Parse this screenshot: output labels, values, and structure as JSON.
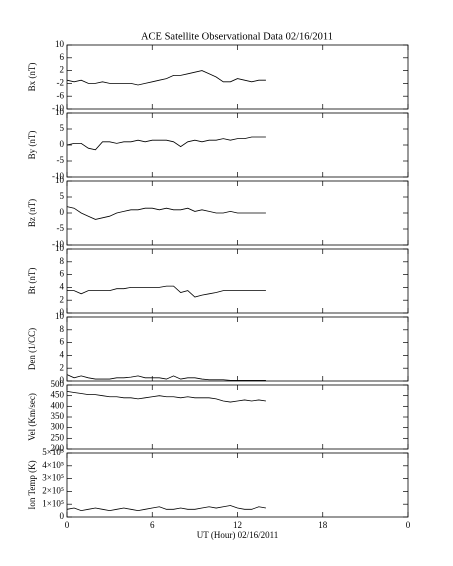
{
  "chart_data": [
    {
      "type": "line",
      "title": "ACE Satellite Observational Data   02/16/2011",
      "ylabel": "Bx (nT)",
      "color": "#000000",
      "xlim": [
        0,
        24
      ],
      "ylim": [
        -10,
        10
      ],
      "yticks": [
        -10,
        -6,
        -2,
        2,
        6,
        10
      ],
      "x": [
        0,
        0.5,
        1,
        1.5,
        2,
        2.5,
        3,
        3.5,
        4,
        4.5,
        5,
        5.5,
        6,
        6.5,
        7,
        7.5,
        8,
        8.5,
        9,
        9.5,
        10,
        10.5,
        11,
        11.5,
        12,
        12.5,
        13,
        13.5,
        14
      ],
      "values": [
        -1,
        -1.5,
        -1,
        -2,
        -2,
        -1.5,
        -2,
        -2,
        -2,
        -2,
        -2.5,
        -2,
        -1.5,
        -1,
        -0.5,
        0.5,
        0.5,
        1,
        1.5,
        2,
        1,
        0,
        -1.5,
        -1.5,
        -0.5,
        -1,
        -1.5,
        -1,
        -1
      ]
    },
    {
      "type": "line",
      "ylabel": "By (nT)",
      "color": "#000000",
      "xlim": [
        0,
        24
      ],
      "ylim": [
        -10,
        10
      ],
      "yticks": [
        -10,
        -5,
        0,
        5,
        10
      ],
      "x": [
        0,
        0.5,
        1,
        1.5,
        2,
        2.5,
        3,
        3.5,
        4,
        4.5,
        5,
        5.5,
        6,
        6.5,
        7,
        7.5,
        8,
        8.5,
        9,
        9.5,
        10,
        10.5,
        11,
        11.5,
        12,
        12.5,
        13,
        13.5,
        14
      ],
      "values": [
        0,
        0.5,
        0.5,
        -1,
        -1.5,
        1,
        1,
        0.5,
        1,
        1,
        1.5,
        1,
        1.5,
        1.5,
        1.5,
        1,
        -0.5,
        1,
        1.5,
        1,
        1.5,
        1.5,
        2,
        1.5,
        2,
        2,
        2.5,
        2.5,
        2.5
      ]
    },
    {
      "type": "line",
      "ylabel": "Bz (nT)",
      "color": "#000000",
      "xlim": [
        0,
        24
      ],
      "ylim": [
        -10,
        10
      ],
      "yticks": [
        -10,
        -5,
        0,
        5,
        10
      ],
      "x": [
        0,
        0.5,
        1,
        1.5,
        2,
        2.5,
        3,
        3.5,
        4,
        4.5,
        5,
        5.5,
        6,
        6.5,
        7,
        7.5,
        8,
        8.5,
        9,
        9.5,
        10,
        10.5,
        11,
        11.5,
        12,
        12.5,
        13,
        13.5,
        14
      ],
      "values": [
        2,
        1.5,
        0,
        -1,
        -2,
        -1.5,
        -1,
        0,
        0.5,
        1,
        1,
        1.5,
        1.5,
        1,
        1.5,
        1,
        1,
        1.5,
        0.5,
        1,
        0.5,
        0,
        0,
        0.5,
        0,
        0,
        0,
        0,
        0
      ]
    },
    {
      "type": "line",
      "ylabel": "Bt (nT)",
      "color": "#000000",
      "xlim": [
        0,
        24
      ],
      "ylim": [
        0,
        10
      ],
      "yticks": [
        0,
        2,
        4,
        6,
        8,
        10
      ],
      "x": [
        0,
        0.5,
        1,
        1.5,
        2,
        2.5,
        3,
        3.5,
        4,
        4.5,
        5,
        5.5,
        6,
        6.5,
        7,
        7.5,
        8,
        8.5,
        9,
        9.5,
        10,
        10.5,
        11,
        11.5,
        12,
        12.5,
        13,
        13.5,
        14
      ],
      "values": [
        3.5,
        3.5,
        3,
        3.5,
        3.5,
        3.5,
        3.5,
        3.8,
        3.8,
        4,
        4,
        4,
        4,
        4,
        4.2,
        4.2,
        3.2,
        3.5,
        2.5,
        2.8,
        3,
        3.2,
        3.5,
        3.5,
        3.5,
        3.5,
        3.5,
        3.5,
        3.5
      ]
    },
    {
      "type": "line",
      "ylabel": "Den (1/CC)",
      "color": "#000000",
      "xlim": [
        0,
        24
      ],
      "ylim": [
        0,
        10
      ],
      "yticks": [
        0,
        2,
        4,
        6,
        8,
        10
      ],
      "x": [
        0,
        0.5,
        1,
        1.5,
        2,
        2.5,
        3,
        3.5,
        4,
        4.5,
        5,
        5.5,
        6,
        6.5,
        7,
        7.5,
        8,
        8.5,
        9,
        9.5,
        10,
        10.5,
        11,
        11.5,
        12,
        12.5,
        13,
        13.5,
        14
      ],
      "values": [
        1,
        0.5,
        0.8,
        0.5,
        0.3,
        0.3,
        0.3,
        0.5,
        0.5,
        0.6,
        0.8,
        0.5,
        0.5,
        0.5,
        0.3,
        0.8,
        0.3,
        0.5,
        0.5,
        0.3,
        0.2,
        0.2,
        0.2,
        0.1,
        0.1,
        0.1,
        0.1,
        0.1,
        0.1
      ]
    },
    {
      "type": "line",
      "ylabel": "Vel (Km/sec)",
      "color": "#000000",
      "xlim": [
        0,
        24
      ],
      "ylim": [
        200,
        500
      ],
      "yticks": [
        200,
        250,
        300,
        350,
        400,
        450,
        500
      ],
      "x": [
        0,
        0.5,
        1,
        1.5,
        2,
        2.5,
        3,
        3.5,
        4,
        4.5,
        5,
        5.5,
        6,
        6.5,
        7,
        7.5,
        8,
        8.5,
        9,
        9.5,
        10,
        10.5,
        11,
        11.5,
        12,
        12.5,
        13,
        13.5,
        14
      ],
      "values": [
        470,
        465,
        460,
        455,
        455,
        450,
        445,
        445,
        440,
        440,
        435,
        440,
        445,
        450,
        445,
        445,
        440,
        445,
        440,
        440,
        440,
        435,
        425,
        420,
        425,
        430,
        425,
        430,
        425
      ]
    },
    {
      "type": "line",
      "ylabel": "Ion Temp (K)",
      "xlabel": "UT (Hour)   02/16/2011",
      "color": "#000000",
      "xlim": [
        0,
        24
      ],
      "xticks": [
        0,
        6,
        12,
        18,
        {
          "value": 24,
          "label": "0"
        }
      ],
      "ylim": [
        0,
        500000
      ],
      "yticks": [
        0,
        {
          "value": 100000,
          "label": "1×10⁵"
        },
        {
          "value": 200000,
          "label": "2×10⁵"
        },
        {
          "value": 300000,
          "label": "3×10⁵"
        },
        {
          "value": 400000,
          "label": "4×10⁵"
        },
        {
          "value": 500000,
          "label": "5×10⁵"
        }
      ],
      "x": [
        0,
        0.5,
        1,
        1.5,
        2,
        2.5,
        3,
        3.5,
        4,
        4.5,
        5,
        5.5,
        6,
        6.5,
        7,
        7.5,
        8,
        8.5,
        9,
        9.5,
        10,
        10.5,
        11,
        11.5,
        12,
        12.5,
        13,
        13.5,
        14
      ],
      "values": [
        60000,
        70000,
        50000,
        60000,
        70000,
        60000,
        50000,
        60000,
        70000,
        60000,
        50000,
        60000,
        70000,
        80000,
        60000,
        60000,
        70000,
        60000,
        60000,
        70000,
        80000,
        70000,
        80000,
        90000,
        70000,
        60000,
        60000,
        80000,
        70000
      ]
    }
  ]
}
